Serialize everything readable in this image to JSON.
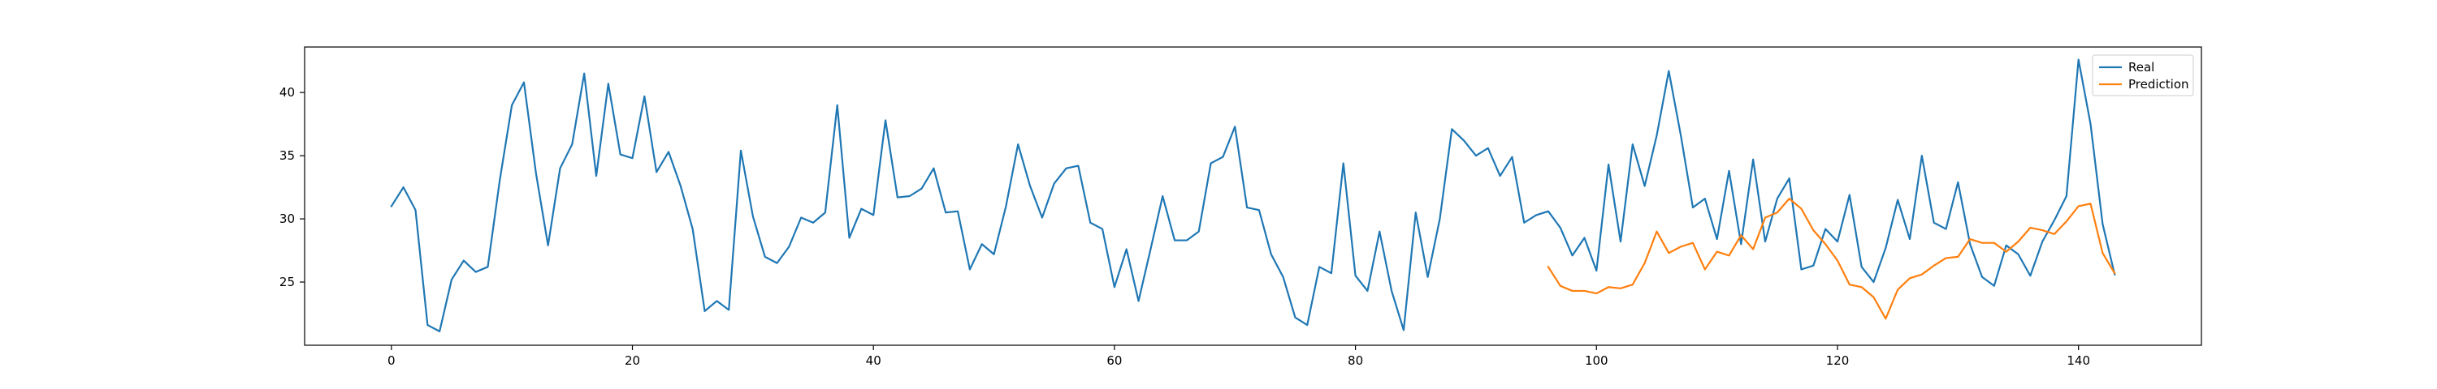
{
  "chart_data": {
    "type": "line",
    "title": "",
    "xlabel": "",
    "ylabel": "",
    "xlim": [
      -7.2,
      150.2
    ],
    "ylim": [
      20.0,
      43.6
    ],
    "xticks": [
      0,
      20,
      40,
      60,
      80,
      100,
      120,
      140
    ],
    "yticks": [
      25,
      30,
      35,
      40
    ],
    "grid": false,
    "legend": "top-right",
    "series": [
      {
        "name": "Real",
        "color": "#1f77b4",
        "x_start": 0,
        "values": [
          31.0,
          32.5,
          30.7,
          21.6,
          21.1,
          25.2,
          26.7,
          25.8,
          26.2,
          33.1,
          39.0,
          40.8,
          33.6,
          27.9,
          34.0,
          35.9,
          41.5,
          33.4,
          40.7,
          35.1,
          34.8,
          39.7,
          33.7,
          35.3,
          32.6,
          29.2,
          22.7,
          23.5,
          22.8,
          35.4,
          30.2,
          27.0,
          26.5,
          27.8,
          30.1,
          29.7,
          30.5,
          39.0,
          28.5,
          30.8,
          30.3,
          37.8,
          31.7,
          31.8,
          32.4,
          34.0,
          30.5,
          30.6,
          26.0,
          28.0,
          27.2,
          31.0,
          35.9,
          32.6,
          30.1,
          32.8,
          34.0,
          34.2,
          29.7,
          29.2,
          24.6,
          27.6,
          23.5,
          27.6,
          31.8,
          28.3,
          28.3,
          29.0,
          34.4,
          34.9,
          37.3,
          30.9,
          30.7,
          27.2,
          25.4,
          22.2,
          21.6,
          26.2,
          25.7,
          34.4,
          25.5,
          24.3,
          29.0,
          24.3,
          21.2,
          30.5,
          25.4,
          30.0,
          37.1,
          36.2,
          35.0,
          35.6,
          33.4,
          34.9,
          29.7,
          30.3,
          30.6,
          29.3,
          27.1,
          28.5,
          25.9,
          34.3,
          28.2,
          35.9,
          32.6,
          36.6,
          41.7,
          36.6,
          30.9,
          31.6,
          28.4,
          33.8,
          28.0,
          34.7,
          28.2,
          31.6,
          33.2,
          26.0,
          26.3,
          29.2,
          28.2,
          31.9,
          26.2,
          25.0,
          27.7,
          31.5,
          28.4,
          35.0,
          29.7,
          29.2,
          32.9,
          28.0,
          25.4,
          24.7,
          27.9,
          27.2,
          25.5,
          28.2,
          29.9,
          31.8,
          42.6,
          37.5,
          29.6,
          25.6
        ]
      },
      {
        "name": "Prediction",
        "color": "#ff7f0e",
        "x_start": 96,
        "values": [
          26.2,
          24.7,
          24.3,
          24.3,
          24.1,
          24.6,
          24.5,
          24.8,
          26.5,
          29.0,
          27.3,
          27.8,
          28.1,
          26.0,
          27.4,
          27.1,
          28.7,
          27.6,
          30.1,
          30.5,
          31.6,
          30.8,
          29.1,
          28.0,
          26.7,
          24.8,
          24.6,
          23.8,
          22.1,
          24.4,
          25.3,
          25.6,
          26.3,
          26.9,
          27.0,
          28.4,
          28.1,
          28.1,
          27.4,
          28.2,
          29.3,
          29.1,
          28.8,
          29.8,
          31.0,
          31.2,
          27.3,
          25.7
        ]
      }
    ]
  }
}
